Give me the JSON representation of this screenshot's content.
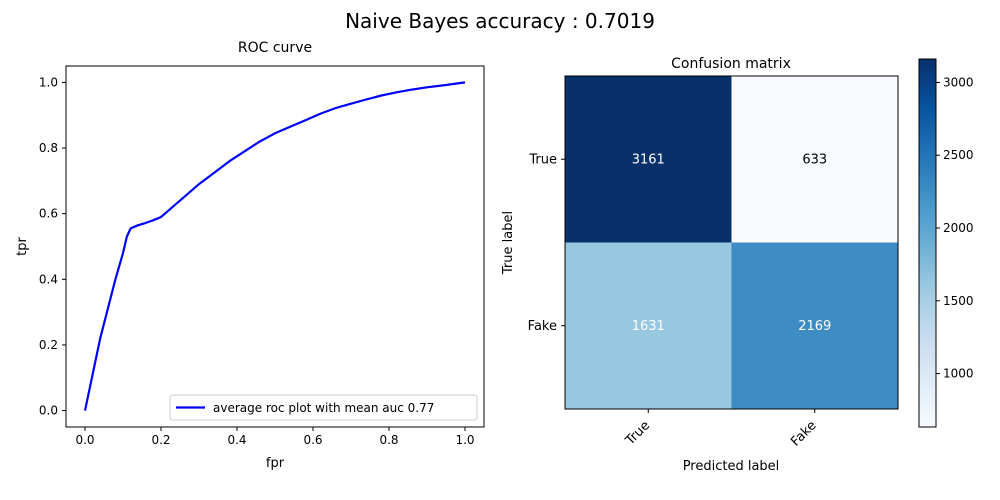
{
  "figure": {
    "suptitle": "Naive Bayes accuracy : 0.7019"
  },
  "chart_data": [
    {
      "type": "line",
      "title": "ROC curve",
      "xlabel": "fpr",
      "ylabel": "tpr",
      "xlim": [
        -0.05,
        1.05
      ],
      "ylim": [
        -0.05,
        1.05
      ],
      "xticks": [
        0.0,
        0.2,
        0.4,
        0.6,
        0.8,
        1.0
      ],
      "yticks": [
        0.0,
        0.2,
        0.4,
        0.6,
        0.8,
        1.0
      ],
      "tick_labels": [
        "0.0",
        "0.2",
        "0.4",
        "0.6",
        "0.8",
        "1.0"
      ],
      "grid": false,
      "legend_position": "lower-right",
      "series": [
        {
          "name": "average roc plot with mean auc 0.77",
          "color": "#0000ff",
          "x": [
            0.0,
            0.02,
            0.04,
            0.06,
            0.08,
            0.1,
            0.11,
            0.12,
            0.14,
            0.16,
            0.18,
            0.2,
            0.22,
            0.24,
            0.26,
            0.28,
            0.3,
            0.34,
            0.38,
            0.42,
            0.46,
            0.5,
            0.54,
            0.58,
            0.62,
            0.66,
            0.7,
            0.74,
            0.78,
            0.82,
            0.86,
            0.9,
            0.95,
            1.0
          ],
          "y": [
            0.0,
            0.11,
            0.22,
            0.31,
            0.4,
            0.48,
            0.53,
            0.555,
            0.565,
            0.572,
            0.58,
            0.59,
            0.61,
            0.63,
            0.65,
            0.67,
            0.69,
            0.725,
            0.76,
            0.79,
            0.82,
            0.845,
            0.865,
            0.885,
            0.905,
            0.922,
            0.935,
            0.948,
            0.96,
            0.97,
            0.978,
            0.985,
            0.992,
            1.0
          ]
        }
      ]
    },
    {
      "type": "heatmap",
      "title": "Confusion matrix",
      "xlabel": "Predicted label",
      "ylabel": "True label",
      "rows": [
        "True",
        "Fake"
      ],
      "cols": [
        "True",
        "Fake"
      ],
      "values": [
        [
          3161,
          633
        ],
        [
          1631,
          2169
        ]
      ],
      "cell_colors": [
        [
          "#08306b",
          "#f7fbff"
        ],
        [
          "#98c7e0",
          "#3d8dc4"
        ]
      ],
      "text_colors": [
        [
          "#ffffff",
          "#000000"
        ],
        [
          "#ffffff",
          "#ffffff"
        ]
      ],
      "colorbar": {
        "min": 633,
        "max": 3161,
        "ticks": [
          1000,
          1500,
          2000,
          2500,
          3000
        ],
        "tick_labels": [
          "1000",
          "1500",
          "2000",
          "2500",
          "3000"
        ],
        "colormap": "Blues",
        "stops": [
          "#f7fbff",
          "#deebf7",
          "#c6dbef",
          "#9ecae1",
          "#6baed6",
          "#4292c6",
          "#2171b5",
          "#08519c",
          "#08306b"
        ]
      }
    }
  ]
}
